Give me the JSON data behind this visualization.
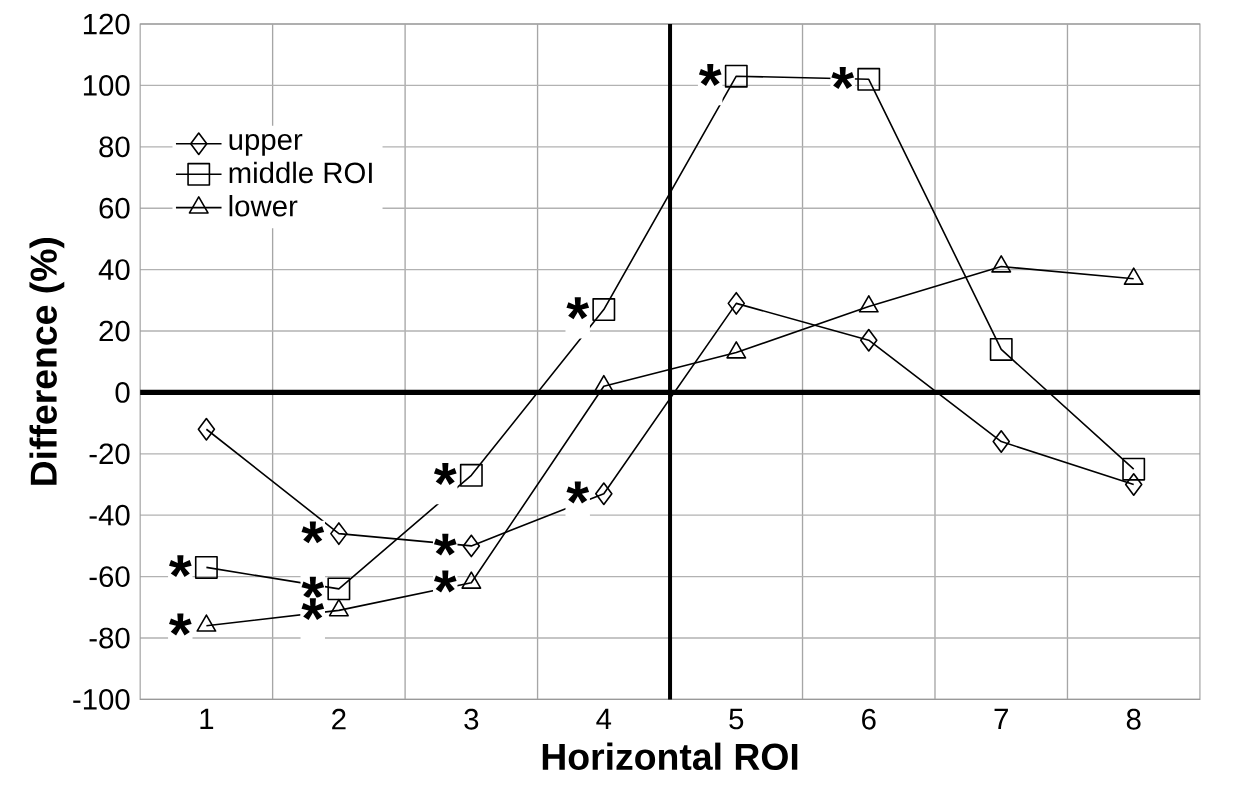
{
  "chart_data": {
    "type": "line",
    "xlabel": "Horizontal ROI",
    "ylabel": "Difference (%)",
    "x": [
      1,
      2,
      3,
      4,
      5,
      6,
      7,
      8
    ],
    "xlim": [
      0.5,
      8.5
    ],
    "xticks": [
      1,
      2,
      3,
      4,
      5,
      6,
      7,
      8
    ],
    "series": [
      {
        "name": "upper",
        "color": "#000000",
        "marker": "diamond",
        "values": [
          -12,
          -46,
          -50,
          -33,
          29,
          17,
          -16,
          -30
        ]
      },
      {
        "name": "middle  ROI",
        "color": "#000000",
        "marker": "square",
        "values": [
          -57,
          -64,
          -27,
          27,
          103,
          102,
          14,
          -25
        ]
      },
      {
        "name": "lower",
        "color": "#000000",
        "marker": "triangle",
        "values": [
          -76,
          -71,
          -62,
          2,
          13,
          28,
          41,
          37
        ]
      }
    ],
    "ylim": [
      -100,
      120
    ],
    "yticks": [
      -100,
      -80,
      -60,
      -40,
      -20,
      0,
      20,
      40,
      60,
      80,
      100,
      120
    ],
    "grid": true,
    "legend": "top left",
    "line_style": "solid",
    "ref_lines": [
      {
        "axis": "y",
        "value": 0,
        "color": "#000000"
      },
      {
        "axis": "x",
        "value": 4.5,
        "color": "#000000"
      }
    ],
    "annotations": [
      {
        "text": "*",
        "x": 2,
        "y": -46
      },
      {
        "text": "*",
        "x": 3,
        "y": -50
      },
      {
        "text": "*",
        "x": 4,
        "y": -33
      },
      {
        "text": "*",
        "x": 1,
        "y": -57
      },
      {
        "text": "*",
        "x": 2,
        "y": -64
      },
      {
        "text": "*",
        "x": 3,
        "y": -27
      },
      {
        "text": "*",
        "x": 4,
        "y": 27
      },
      {
        "text": "*",
        "x": 5,
        "y": 103
      },
      {
        "text": "*",
        "x": 6,
        "y": 102
      },
      {
        "text": "*",
        "x": 1,
        "y": -76
      },
      {
        "text": "*",
        "x": 2,
        "y": -71
      },
      {
        "text": "*",
        "x": 3,
        "y": -62
      }
    ]
  }
}
